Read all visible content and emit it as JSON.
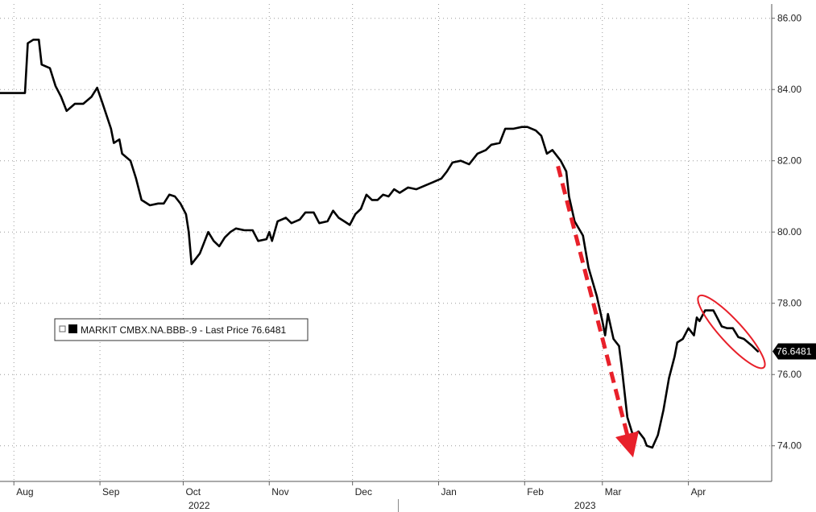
{
  "chart_data": {
    "type": "line",
    "series": [
      {
        "name": "MARKIT CMBX.NA.BBB-.9 - Last Price 76.6481",
        "last_value": "76.6481",
        "color": "#000000",
        "points": [
          [
            "2022-07-27",
            83.9
          ],
          [
            "2022-08-05",
            83.9
          ],
          [
            "2022-08-06",
            85.3
          ],
          [
            "2022-08-08",
            85.4
          ],
          [
            "2022-08-10",
            85.4
          ],
          [
            "2022-08-11",
            84.7
          ],
          [
            "2022-08-14",
            84.6
          ],
          [
            "2022-08-16",
            84.1
          ],
          [
            "2022-08-18",
            83.8
          ],
          [
            "2022-08-20",
            83.4
          ],
          [
            "2022-08-23",
            83.6
          ],
          [
            "2022-08-26",
            83.6
          ],
          [
            "2022-08-29",
            83.8
          ],
          [
            "2022-08-31",
            84.05
          ],
          [
            "2022-09-02",
            83.6
          ],
          [
            "2022-09-05",
            82.9
          ],
          [
            "2022-09-06",
            82.5
          ],
          [
            "2022-09-08",
            82.6
          ],
          [
            "2022-09-09",
            82.2
          ],
          [
            "2022-09-12",
            82.0
          ],
          [
            "2022-09-14",
            81.5
          ],
          [
            "2022-09-16",
            80.9
          ],
          [
            "2022-09-19",
            80.75
          ],
          [
            "2022-09-22",
            80.8
          ],
          [
            "2022-09-24",
            80.8
          ],
          [
            "2022-09-26",
            81.05
          ],
          [
            "2022-09-28",
            81.0
          ],
          [
            "2022-09-30",
            80.8
          ],
          [
            "2022-10-02",
            80.5
          ],
          [
            "2022-10-03",
            80.0
          ],
          [
            "2022-10-04",
            79.1
          ],
          [
            "2022-10-07",
            79.4
          ],
          [
            "2022-10-10",
            80.0
          ],
          [
            "2022-10-12",
            79.75
          ],
          [
            "2022-10-14",
            79.6
          ],
          [
            "2022-10-16",
            79.85
          ],
          [
            "2022-10-18",
            80.0
          ],
          [
            "2022-10-20",
            80.1
          ],
          [
            "2022-10-23",
            80.05
          ],
          [
            "2022-10-26",
            80.05
          ],
          [
            "2022-10-28",
            79.75
          ],
          [
            "2022-10-31",
            79.8
          ],
          [
            "2022-11-01",
            80.0
          ],
          [
            "2022-11-02",
            79.75
          ],
          [
            "2022-11-04",
            80.3
          ],
          [
            "2022-11-07",
            80.4
          ],
          [
            "2022-11-09",
            80.25
          ],
          [
            "2022-11-12",
            80.35
          ],
          [
            "2022-11-14",
            80.55
          ],
          [
            "2022-11-17",
            80.55
          ],
          [
            "2022-11-19",
            80.25
          ],
          [
            "2022-11-22",
            80.3
          ],
          [
            "2022-11-24",
            80.6
          ],
          [
            "2022-11-26",
            80.4
          ],
          [
            "2022-11-28",
            80.3
          ],
          [
            "2022-11-30",
            80.2
          ],
          [
            "2022-12-02",
            80.5
          ],
          [
            "2022-12-04",
            80.65
          ],
          [
            "2022-12-06",
            81.05
          ],
          [
            "2022-12-08",
            80.9
          ],
          [
            "2022-12-10",
            80.9
          ],
          [
            "2022-12-12",
            81.05
          ],
          [
            "2022-12-14",
            81.0
          ],
          [
            "2022-12-16",
            81.2
          ],
          [
            "2022-12-18",
            81.1
          ],
          [
            "2022-12-21",
            81.25
          ],
          [
            "2022-12-24",
            81.2
          ],
          [
            "2022-12-27",
            81.3
          ],
          [
            "2022-12-30",
            81.4
          ],
          [
            "2023-01-02",
            81.5
          ],
          [
            "2023-01-04",
            81.7
          ],
          [
            "2023-01-06",
            81.95
          ],
          [
            "2023-01-09",
            82.0
          ],
          [
            "2023-01-12",
            81.9
          ],
          [
            "2023-01-15",
            82.2
          ],
          [
            "2023-01-18",
            82.3
          ],
          [
            "2023-01-20",
            82.45
          ],
          [
            "2023-01-23",
            82.5
          ],
          [
            "2023-01-25",
            82.9
          ],
          [
            "2023-01-28",
            82.9
          ],
          [
            "2023-01-31",
            82.95
          ],
          [
            "2023-02-02",
            82.95
          ],
          [
            "2023-02-05",
            82.85
          ],
          [
            "2023-02-07",
            82.7
          ],
          [
            "2023-02-09",
            82.2
          ],
          [
            "2023-02-11",
            82.3
          ],
          [
            "2023-02-14",
            82.0
          ],
          [
            "2023-02-16",
            81.7
          ],
          [
            "2023-02-17",
            81.0
          ],
          [
            "2023-02-19",
            80.3
          ],
          [
            "2023-02-22",
            79.9
          ],
          [
            "2023-02-24",
            79.0
          ],
          [
            "2023-02-27",
            78.2
          ],
          [
            "2023-03-01",
            77.5
          ],
          [
            "2023-03-02",
            77.1
          ],
          [
            "2023-03-03",
            77.7
          ],
          [
            "2023-03-05",
            77.0
          ],
          [
            "2023-03-07",
            76.8
          ],
          [
            "2023-03-08",
            76.2
          ],
          [
            "2023-03-10",
            74.8
          ],
          [
            "2023-03-12",
            74.3
          ],
          [
            "2023-03-14",
            74.4
          ],
          [
            "2023-03-16",
            74.2
          ],
          [
            "2023-03-17",
            74.0
          ],
          [
            "2023-03-19",
            73.95
          ],
          [
            "2023-03-21",
            74.3
          ],
          [
            "2023-03-23",
            75.0
          ],
          [
            "2023-03-25",
            75.9
          ],
          [
            "2023-03-27",
            76.5
          ],
          [
            "2023-03-28",
            76.9
          ],
          [
            "2023-03-30",
            77.0
          ],
          [
            "2023-04-01",
            77.3
          ],
          [
            "2023-04-03",
            77.1
          ],
          [
            "2023-04-04",
            77.6
          ],
          [
            "2023-04-05",
            77.5
          ],
          [
            "2023-04-07",
            77.8
          ],
          [
            "2023-04-10",
            77.8
          ],
          [
            "2023-04-11",
            77.65
          ],
          [
            "2023-04-13",
            77.35
          ],
          [
            "2023-04-15",
            77.3
          ],
          [
            "2023-04-17",
            77.3
          ],
          [
            "2023-04-19",
            77.05
          ],
          [
            "2023-04-21",
            77.0
          ],
          [
            "2023-04-24",
            76.8
          ],
          [
            "2023-04-26",
            76.65
          ]
        ]
      }
    ],
    "y_ticks": [
      "86.00",
      "84.00",
      "82.00",
      "80.00",
      "78.00",
      "76.00",
      "74.00"
    ],
    "x_ticks": [
      {
        "label": "Aug",
        "date": "2022-08-01"
      },
      {
        "label": "Sep",
        "date": "2022-09-01"
      },
      {
        "label": "Oct",
        "date": "2022-10-01"
      },
      {
        "label": "Nov",
        "date": "2022-11-01"
      },
      {
        "label": "Dec",
        "date": "2022-12-01"
      },
      {
        "label": "Jan",
        "date": "2023-01-01"
      },
      {
        "label": "Feb",
        "date": "2023-02-01"
      },
      {
        "label": "Mar",
        "date": "2023-03-01"
      },
      {
        "label": "Apr",
        "date": "2023-04-01"
      }
    ],
    "year_labels": [
      "2022",
      "2023"
    ],
    "ylim": [
      73.0,
      86.4
    ],
    "xlim": [
      "2022-07-27",
      "2023-05-01"
    ],
    "grid": true,
    "y_axis_side": "right",
    "legend": {
      "placement": "left",
      "text": "MARKIT CMBX.NA.BBB-.9 - Last Price 76.6481"
    },
    "annotations": [
      {
        "type": "dashed-arrow",
        "color": "#e8202a",
        "from": [
          "2023-02-13",
          81.85
        ],
        "to": [
          "2023-03-11",
          74.0
        ]
      },
      {
        "type": "ellipse",
        "color": "#e8202a",
        "around": [
          "2023-04-06",
          "2023-04-27",
          76.3,
          78.1
        ]
      }
    ],
    "title": "",
    "xlabel": "",
    "ylabel": ""
  }
}
